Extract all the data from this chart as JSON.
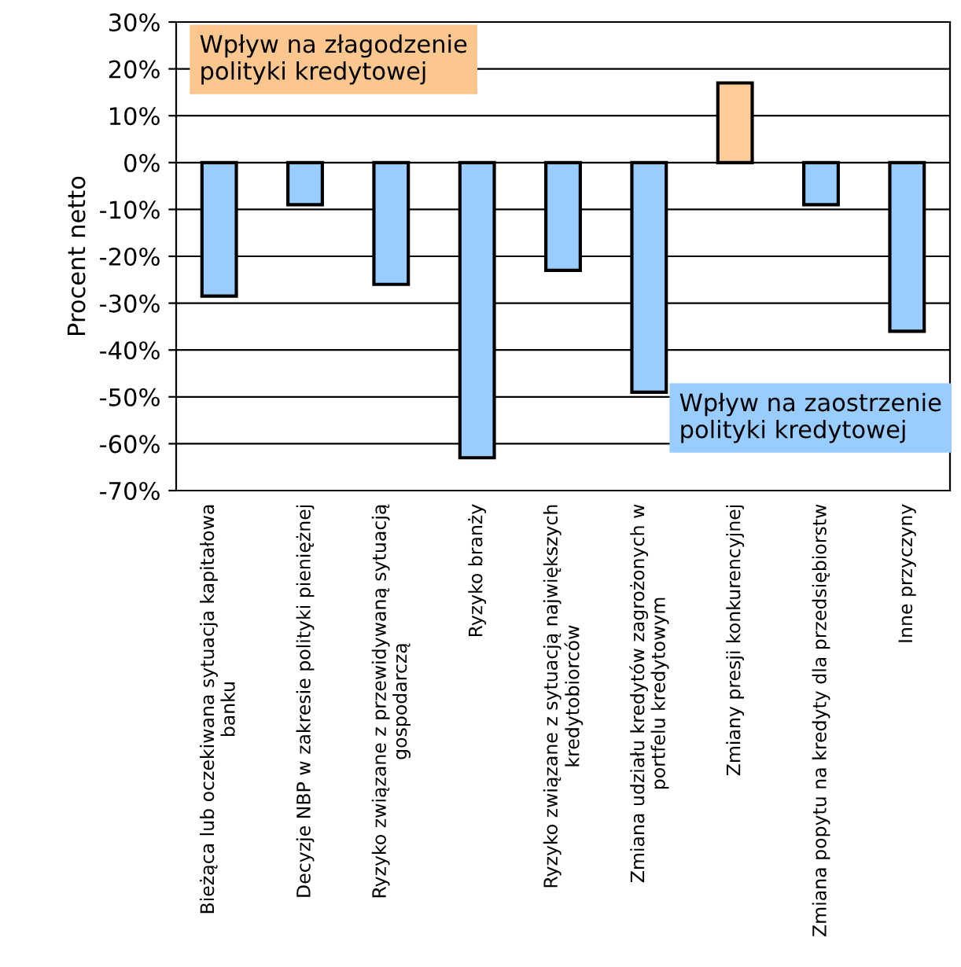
{
  "chart_data": {
    "type": "bar",
    "ylabel": "Procent netto",
    "categories": [
      "Bieżąca lub oczekiwana sytuacja kapitałowa\nbanku",
      "Decyzje NBP w zakresie polityki pieniężnej",
      "Ryzyko związane z przewidywaną sytuacją\ngospodarczą",
      "Ryzyko branży",
      "Ryzyko związane z sytuacją największych\nkredytobiorców",
      "Zmiana udziału kredytów zagrożonych w\nportfelu kredytowym",
      "Zmiany presji konkurencyjnej",
      "Zmiana popytu na kredyty dla przedsiębiorstw",
      "Inne przyczyny"
    ],
    "values": [
      -28.5,
      -9,
      -26,
      -63,
      -23,
      -49,
      17,
      -9,
      -36
    ],
    "colors": [
      "#99ccff",
      "#99ccff",
      "#99ccff",
      "#99ccff",
      "#99ccff",
      "#99ccff",
      "#ffcc99",
      "#99ccff",
      "#99ccff"
    ],
    "ylim": [
      -70,
      30
    ],
    "yticks": [
      {
        "value": -70,
        "label": "-70%"
      },
      {
        "value": -60,
        "label": "-60%"
      },
      {
        "value": -50,
        "label": "-50%"
      },
      {
        "value": -40,
        "label": "-40%"
      },
      {
        "value": -30,
        "label": "-30%"
      },
      {
        "value": -20,
        "label": "-20%"
      },
      {
        "value": -10,
        "label": "-10%"
      },
      {
        "value": 0,
        "label": "0%"
      },
      {
        "value": 10,
        "label": "10%"
      },
      {
        "value": 20,
        "label": "20%"
      },
      {
        "value": 30,
        "label": "30%"
      }
    ],
    "grid": "y",
    "annotations": [
      "Wpływ na złagodzenie\npolityki kredytowej",
      "Wpływ na zaostrzenie\npolityki kredytowej"
    ]
  }
}
